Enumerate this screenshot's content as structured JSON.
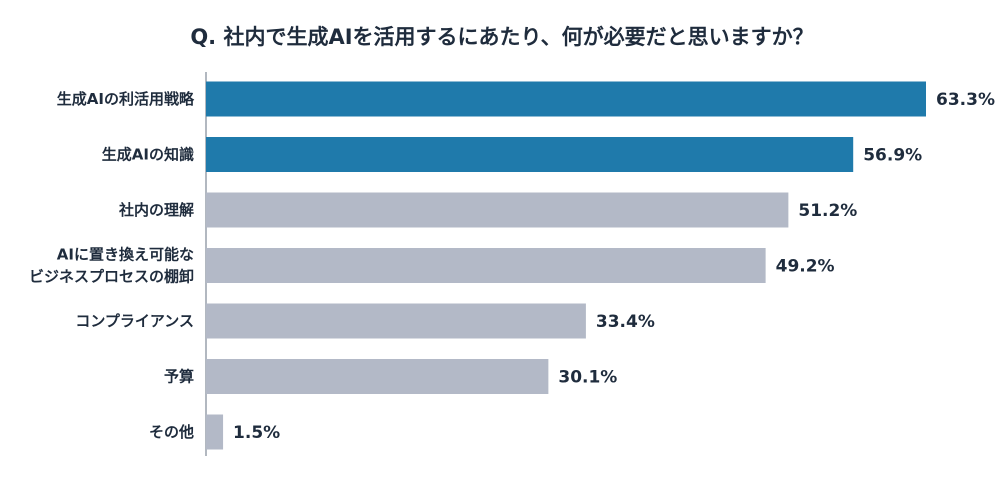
{
  "colors": {
    "highlight": "#1f7aab",
    "normal": "#b3b9c7",
    "text": "#1f2c3d",
    "axis": "#7f8896"
  },
  "chart_data": {
    "type": "bar",
    "orientation": "horizontal",
    "title": "Q. 社内で生成AIを活用するにあたり、何が必要だと思いますか？",
    "xlabel": "",
    "ylabel": "",
    "xlim": [
      0,
      63.3
    ],
    "grid": false,
    "legend": "none",
    "categories": [
      [
        "生成AIの利活用戦略"
      ],
      [
        "生成AIの知識"
      ],
      [
        "社内の理解"
      ],
      [
        "AIに置き換え可能な",
        "ビジネスプロセスの棚卸"
      ],
      [
        "コンプライアンス"
      ],
      [
        "予算"
      ],
      [
        "その他"
      ]
    ],
    "values": [
      63.3,
      56.9,
      51.2,
      49.2,
      33.4,
      30.1,
      1.5
    ],
    "value_labels": [
      "63.3%",
      "56.9%",
      "51.2%",
      "49.2%",
      "33.4%",
      "30.1%",
      "1.5%"
    ],
    "highlighted": [
      true,
      true,
      false,
      false,
      false,
      false,
      false
    ]
  }
}
